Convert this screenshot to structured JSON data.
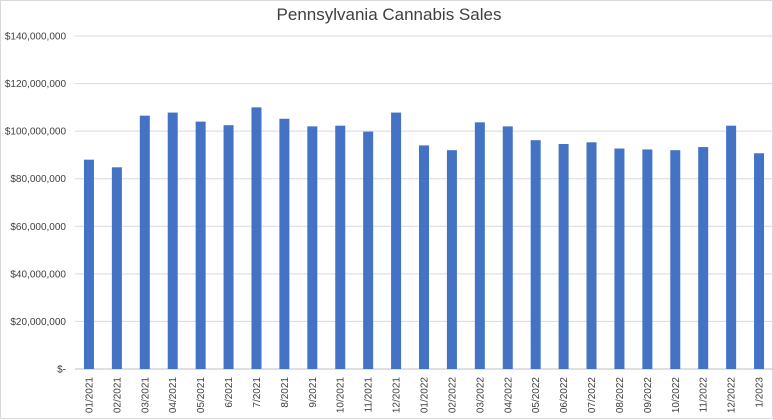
{
  "chart_data": {
    "type": "bar",
    "title": "Pennsylvania Cannabis Sales",
    "xlabel": "",
    "ylabel": "",
    "ylim": [
      0,
      140000000
    ],
    "y_ticks": [
      0,
      20000000,
      40000000,
      60000000,
      80000000,
      100000000,
      120000000,
      140000000
    ],
    "y_tick_labels": [
      "$-",
      "$20,000,000",
      "$40,000,000",
      "$60,000,000",
      "$80,000,000",
      "$100,000,000",
      "$120,000,000",
      "$140,000,000"
    ],
    "grid": true,
    "legend": "none",
    "bar_color": "#4472C4",
    "categories": [
      "01/2021",
      "02/2021",
      "03/2021",
      "04/2021",
      "05/2021",
      "6/2021",
      "7/2021",
      "8/2021",
      "9/2021",
      "10/2021",
      "11/2021",
      "12/2021",
      "01/2022",
      "02/2022",
      "03/2022",
      "04/2022",
      "05/2022",
      "06/2022",
      "07/2022",
      "08/2022",
      "09/2022",
      "10/2022",
      "11/2022",
      "12/2022",
      "1/2023"
    ],
    "values": [
      88000000,
      84800000,
      106500000,
      107800000,
      104000000,
      102500000,
      110000000,
      105200000,
      102000000,
      102300000,
      99800000,
      107800000,
      94000000,
      92000000,
      103700000,
      102000000,
      96200000,
      94600000,
      95300000,
      92700000,
      92300000,
      92000000,
      93300000,
      102300000,
      90700000
    ]
  }
}
